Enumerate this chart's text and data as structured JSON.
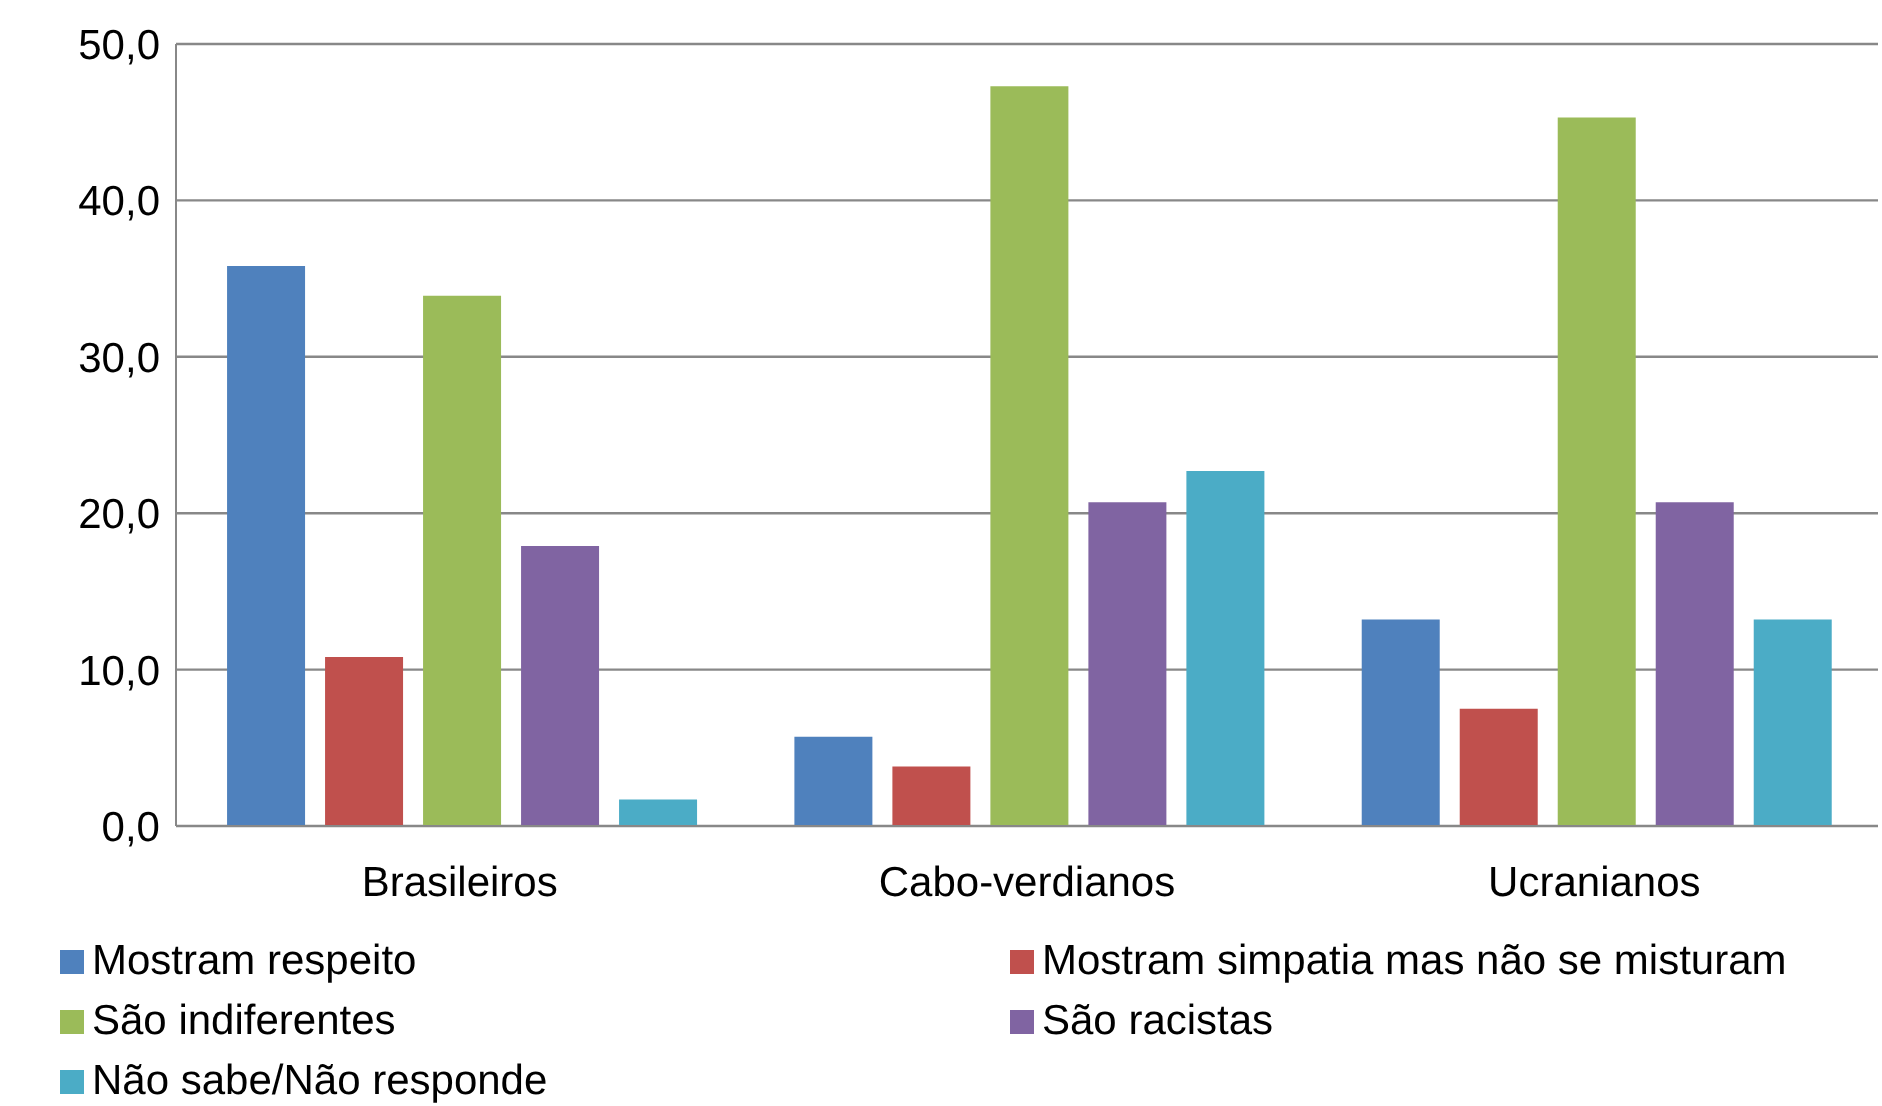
{
  "chart_data": {
    "type": "bar",
    "categories": [
      "Brasileiros",
      "Cabo-verdianos",
      "Ucranianos"
    ],
    "series": [
      {
        "name": "Mostram respeito",
        "color": "#4f81bd",
        "values": [
          35.8,
          5.7,
          13.2
        ]
      },
      {
        "name": "Mostram simpatia mas não se misturam",
        "color": "#c0504d",
        "values": [
          10.8,
          3.8,
          7.5
        ]
      },
      {
        "name": "São indiferentes",
        "color": "#9bbb59",
        "values": [
          33.9,
          47.3,
          45.3
        ]
      },
      {
        "name": "São racistas",
        "color": "#8064a2",
        "values": [
          17.9,
          20.7,
          20.7
        ]
      },
      {
        "name": "Não sabe/Não responde",
        "color": "#4bacc6",
        "values": [
          1.7,
          22.7,
          13.2
        ]
      }
    ],
    "ylim": [
      0,
      50
    ],
    "yticks": [
      {
        "value": 0,
        "label": "0,0"
      },
      {
        "value": 10,
        "label": "10,0"
      },
      {
        "value": 20,
        "label": "20,0"
      },
      {
        "value": 30,
        "label": "30,0"
      },
      {
        "value": 40,
        "label": "40,0"
      },
      {
        "value": 50,
        "label": "50,0"
      }
    ],
    "grid": "y",
    "legend": "bottom"
  }
}
